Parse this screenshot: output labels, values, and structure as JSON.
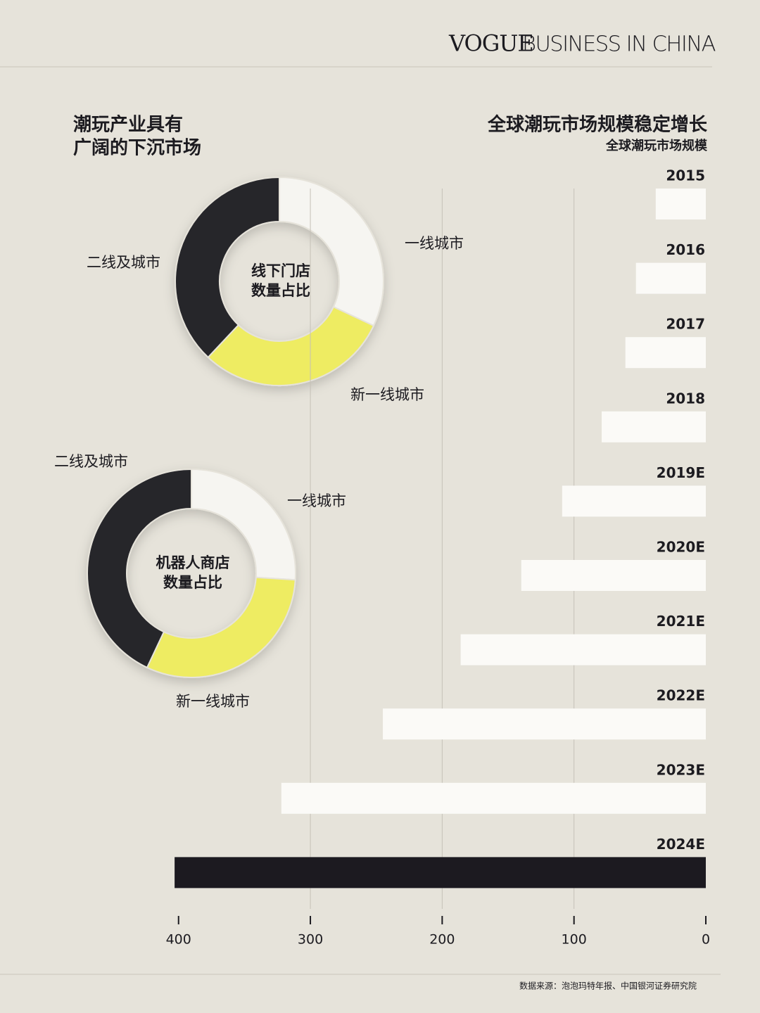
{
  "header": {
    "brand": "VOGUE",
    "title": "BUSINESS IN CHINA"
  },
  "section_title": [
    "潮玩产业具有",
    "广阔的下沉市场"
  ],
  "source": "数据来源：泡泡玛特年报、中国银河证券研究院",
  "chart_data": [
    {
      "type": "donut",
      "title": [
        "线下门店",
        "数量占比"
      ],
      "categories": [
        "一线城市",
        "新一线城市",
        "二线及城市"
      ],
      "values": [
        32,
        30,
        38
      ],
      "colors": [
        "#f6f5f1",
        "#eeec62",
        "#26252c"
      ]
    },
    {
      "type": "donut",
      "title": [
        "机器人商店",
        "数量占比"
      ],
      "categories": [
        "一线城市",
        "新一线城市",
        "二线及城市"
      ],
      "values": [
        26,
        31,
        43
      ],
      "colors": [
        "#f6f5f1",
        "#eeec62",
        "#26252c"
      ]
    },
    {
      "type": "hbar",
      "title": "全球潮玩市场规模稳定增长",
      "subtitle": "全球潮玩市场规模",
      "categories": [
        "2015",
        "2016",
        "2017",
        "2018",
        "2019E",
        "2020E",
        "2021E",
        "2022E",
        "2023E",
        "2024E"
      ],
      "values": [
        38,
        53,
        61,
        79,
        109,
        140,
        186,
        245,
        322,
        403
      ],
      "colors": [
        "#fbfaf7",
        "#fbfaf7",
        "#fbfaf7",
        "#fbfaf7",
        "#fbfaf7",
        "#fbfaf7",
        "#fbfaf7",
        "#fbfaf7",
        "#fbfaf7",
        "#1c1a20"
      ],
      "xlim": [
        410,
        0
      ],
      "xticks": [
        400,
        300,
        200,
        100,
        0
      ],
      "grid": true
    }
  ]
}
